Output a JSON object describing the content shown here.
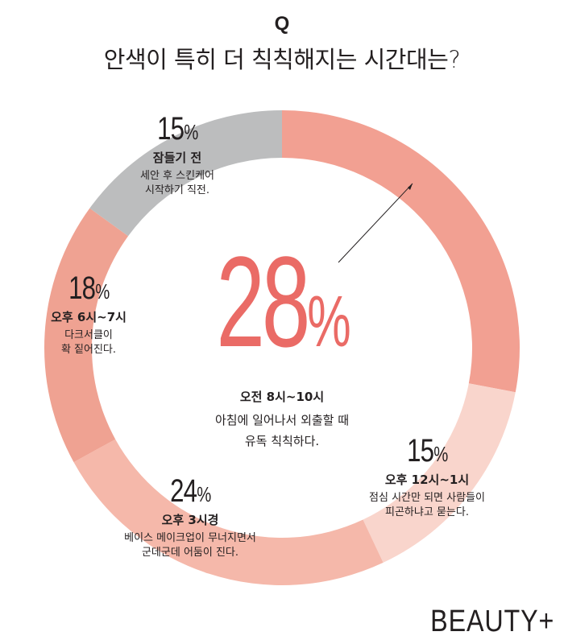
{
  "header": {
    "q_mark": "Q",
    "question": "안색이 특히 더 칙칙해지는 시간대는?"
  },
  "chart_data": {
    "type": "pie",
    "title": "안색이 특히 더 칙칙해지는 시간대는?",
    "categories": [
      "오전 8시~10시",
      "오후 12시~1시",
      "오후 3시경",
      "오후 6시~7시",
      "잠들기 전"
    ],
    "values": [
      28,
      15,
      24,
      18,
      15
    ],
    "unit": "%",
    "colors": [
      "#f2a092",
      "#f9d5cc",
      "#f5b8aa",
      "#efa292",
      "#bcbdbe"
    ],
    "descriptions": [
      "아침에 일어나서 외출할 때\n유독 칙칙하다.",
      "점심 시간만 되면 사람들이\n피곤하냐고 묻는다.",
      "베이스 메이크업이 무너지면서\n군데군데 어둠이 진다.",
      "다크서클이\n확 짙어진다.",
      "세안 후 스킨케어\n시작하기 직전."
    ]
  },
  "labels": {
    "morning": {
      "value": "28",
      "time": "오전 8시~10시",
      "desc": "아침에 일어나서 외출할 때\n유독 칙칙하다."
    },
    "lunch": {
      "value": "15",
      "time": "오후 12시~1시",
      "desc": "점심 시간만 되면 사람들이\n피곤하냐고 묻는다."
    },
    "three": {
      "value": "24",
      "time": "오후 3시경",
      "desc": "베이스 메이크업이 무너지면서\n군데군데 어둠이 진다."
    },
    "evening": {
      "value": "18",
      "time": "오후 6시~7시",
      "desc": "다크서클이\n확 짙어진다."
    },
    "bed": {
      "value": "15",
      "time": "잠들기 전",
      "desc": "세안 후 스킨케어\n시작하기 직전."
    },
    "percent_symbol": "%"
  },
  "brand": "BEAUTY+"
}
